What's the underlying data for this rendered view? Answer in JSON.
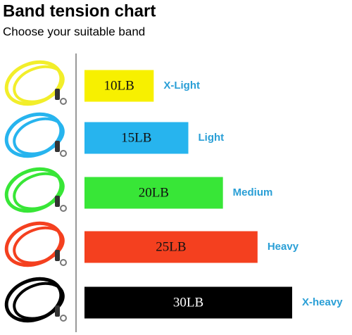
{
  "chart_data": {
    "type": "bar",
    "orientation": "horizontal",
    "title": "Band tension chart",
    "subtitle": "Choose your suitable band",
    "categories": [
      "X-Light",
      "Light",
      "Medium",
      "Heavy",
      "X-heavy"
    ],
    "values": [
      10,
      15,
      20,
      25,
      30
    ],
    "value_labels": [
      "10LB",
      "15LB",
      "20LB",
      "25LB",
      "30LB"
    ],
    "colors": [
      "#f7f000",
      "#27b4ee",
      "#38e637",
      "#f4401f",
      "#000000"
    ]
  }
}
